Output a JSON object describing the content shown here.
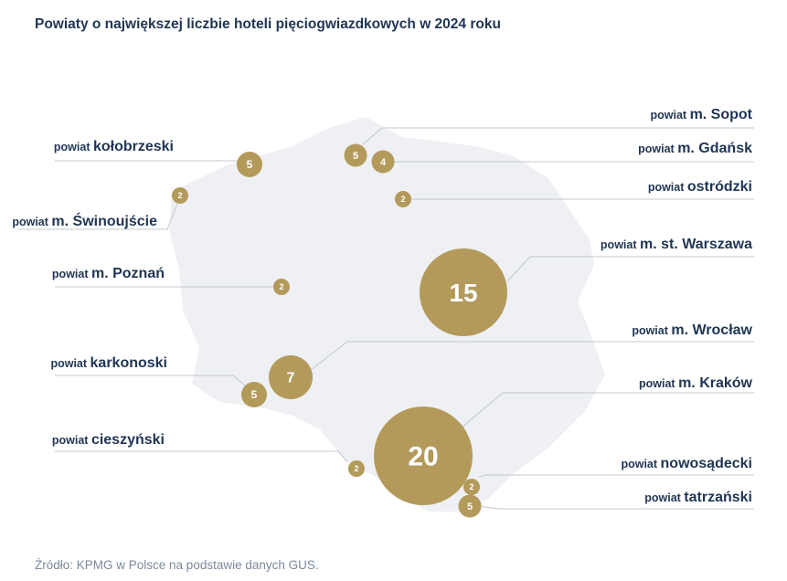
{
  "title": "Powiaty o największej liczbie hoteli pięciogwiazdkowych w 2024 roku",
  "source": "Źródło: KPMG w Polsce na podstawie danych GUS.",
  "colors": {
    "bubble": "#b39a5b",
    "map": "#eef0f3",
    "line": "#c3c8cf",
    "text": "#1f3553"
  },
  "chart_data": {
    "type": "bubble-map",
    "prefix": "powiat",
    "items": [
      {
        "name": "m. Sopot",
        "value": 5
      },
      {
        "name": "kołobrzeski",
        "value": 5
      },
      {
        "name": "m. Gdańsk",
        "value": 4
      },
      {
        "name": "ostródzki",
        "value": 2
      },
      {
        "name": "m. Świnoujście",
        "value": 2
      },
      {
        "name": "m. st. Warszawa",
        "value": 15
      },
      {
        "name": "m. Poznań",
        "value": 2
      },
      {
        "name": "m. Wrocław",
        "value": 7
      },
      {
        "name": "karkonoski",
        "value": 5
      },
      {
        "name": "m. Kraków",
        "value": 20
      },
      {
        "name": "cieszyński",
        "value": 2
      },
      {
        "name": "nowosądecki",
        "value": 2
      },
      {
        "name": "tatrzański",
        "value": 5
      }
    ]
  }
}
